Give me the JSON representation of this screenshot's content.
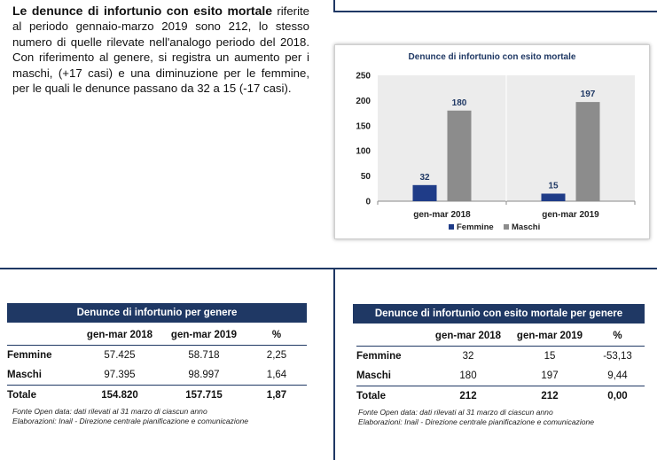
{
  "intro": {
    "title": "Le denunce di infortunio con esito mortale",
    "body": "riferite al periodo gennaio-marzo 2019 sono 212, lo stesso numero di quelle rilevate nell'analogo periodo del 2018. Con riferimento al genere, si registra un aumento per i maschi, (+17 casi) e una diminuzione per le femmine, per le quali le denunce passano da 32 a 15 (-17 casi)."
  },
  "chart_data": {
    "type": "bar",
    "title": "Denunce di infortunio con esito mortale",
    "categories": [
      "gen-mar 2018",
      "gen-mar 2019"
    ],
    "series": [
      {
        "name": "Femmine",
        "values": [
          32,
          15
        ],
        "color": "#1f3c88"
      },
      {
        "name": "Maschi",
        "values": [
          180,
          197
        ],
        "color": "#8c8c8c"
      }
    ],
    "ylim": [
      0,
      250
    ],
    "yticks": [
      "0",
      "50",
      "100",
      "150",
      "200",
      "250"
    ],
    "grid": false,
    "legend": "bottom",
    "xlabel": "",
    "ylabel": ""
  },
  "table1": {
    "title": "Denunce di infortunio per genere",
    "columns": [
      "gen-mar 2018",
      "gen-mar 2019",
      "%"
    ],
    "rows": [
      {
        "label": "Femmine",
        "values": [
          "57.425",
          "58.718",
          "2,25"
        ]
      },
      {
        "label": "Maschi",
        "values": [
          "97.395",
          "98.997",
          "1,64"
        ]
      }
    ],
    "total": {
      "label": "Totale",
      "values": [
        "154.820",
        "157.715",
        "1,87"
      ]
    },
    "note1": "Fonte Open data: dati rilevati al 31 marzo di ciascun anno",
    "note2": "Elaborazioni: Inail  - Direzione centrale pianificazione e comunicazione"
  },
  "table2": {
    "title": "Denunce di infortunio con esito mortale per genere",
    "columns": [
      "gen-mar 2018",
      "gen-mar 2019",
      "%"
    ],
    "rows": [
      {
        "label": "Femmine",
        "values": [
          "32",
          "15",
          "-53,13"
        ]
      },
      {
        "label": "Maschi",
        "values": [
          "180",
          "197",
          "9,44"
        ]
      }
    ],
    "total": {
      "label": "Totale",
      "values": [
        "212",
        "212",
        "0,00"
      ]
    },
    "note1": "Fonte Open data: dati rilevati al 31 marzo di ciascun anno",
    "note2": "Elaborazioni: Inail  - Direzione centrale pianificazione e comunicazione"
  },
  "colors": {
    "accent": "#1f3864",
    "femmine": "#1f3c88",
    "maschi": "#8c8c8c"
  }
}
